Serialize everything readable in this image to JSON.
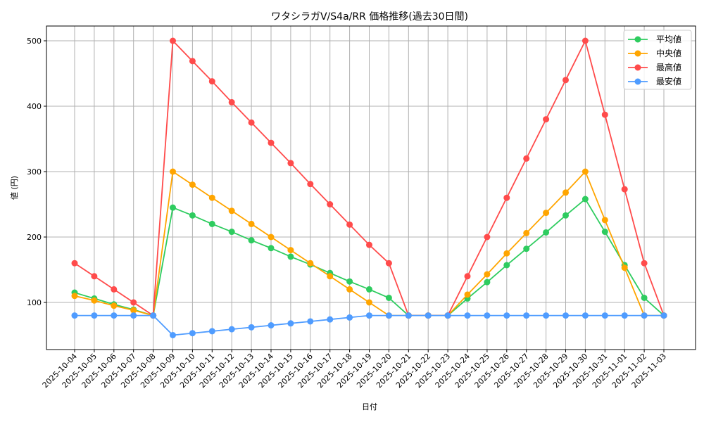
{
  "chart_data": {
    "type": "line",
    "title": "ワタシラガV/S4a/RR 価格推移(過去30日間)",
    "xlabel": "日付",
    "ylabel": "値 (円)",
    "ylim": [
      25,
      522
    ],
    "yticks": [
      100,
      200,
      300,
      400,
      500
    ],
    "grid": true,
    "legend_position": "upper right",
    "x": [
      "2025-10-04",
      "2025-10-05",
      "2025-10-06",
      "2025-10-07",
      "2025-10-08",
      "2025-10-09",
      "2025-10-10",
      "2025-10-11",
      "2025-10-12",
      "2025-10-13",
      "2025-10-14",
      "2025-10-15",
      "2025-10-16",
      "2025-10-17",
      "2025-10-18",
      "2025-10-19",
      "2025-10-20",
      "2025-10-21",
      "2025-10-22",
      "2025-10-23",
      "2025-10-24",
      "2025-10-25",
      "2025-10-26",
      "2025-10-27",
      "2025-10-28",
      "2025-10-29",
      "2025-10-30",
      "2025-10-31",
      "2025-11-01",
      "2025-11-02",
      "2025-11-03"
    ],
    "series": [
      {
        "name": "平均値",
        "color": "#2ecc5f",
        "values": [
          115,
          106,
          97,
          89,
          80,
          245,
          233,
          220,
          208,
          195,
          183,
          170,
          158,
          145,
          132,
          120,
          107,
          80,
          80,
          80,
          106,
          131,
          157,
          182,
          207,
          233,
          258,
          208,
          157,
          107,
          80
        ]
      },
      {
        "name": "中央値",
        "color": "#ffa500",
        "values": [
          110,
          103,
          95,
          88,
          80,
          300,
          280,
          260,
          240,
          220,
          200,
          180,
          160,
          140,
          120,
          100,
          80,
          80,
          80,
          80,
          112,
          143,
          175,
          206,
          237,
          268,
          300,
          226,
          153,
          80,
          80
        ]
      },
      {
        "name": "最高値",
        "color": "#ff4b4b",
        "values": [
          160,
          140,
          120,
          100,
          80,
          500,
          469,
          438,
          406,
          375,
          344,
          313,
          281,
          250,
          219,
          188,
          160,
          80,
          80,
          80,
          140,
          200,
          260,
          320,
          380,
          440,
          500,
          387,
          273,
          160,
          80
        ]
      },
      {
        "name": "最安値",
        "color": "#4f9cff",
        "values": [
          80,
          80,
          80,
          80,
          80,
          50,
          53,
          56,
          59,
          62,
          65,
          68,
          71,
          74,
          77,
          80,
          80,
          80,
          80,
          80,
          80,
          80,
          80,
          80,
          80,
          80,
          80,
          80,
          80,
          80,
          80
        ]
      }
    ]
  }
}
